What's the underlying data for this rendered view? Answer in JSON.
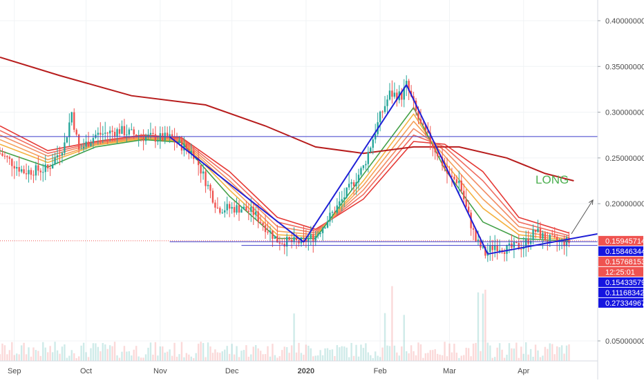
{
  "colors": {
    "bull": "#26a69a",
    "bear": "#ef5350",
    "ma_long": "#b71c1c",
    "trend": "#1f1fd6",
    "hline": "#3b3bc9",
    "long_text": "#4caf50",
    "label_blue": "#1515e0",
    "label_red": "#ef5350",
    "grid": "#f0f3f5",
    "axis_text": "#4a4a4a"
  },
  "chart_data": {
    "type": "candlestick",
    "title": "",
    "xlabel": "",
    "ylabel": "",
    "x_ticks": [
      {
        "date": "2019-09-01",
        "label": "Sep",
        "bold": false
      },
      {
        "date": "2019-10-01",
        "label": "Oct",
        "bold": false
      },
      {
        "date": "2019-11-01",
        "label": "Nov",
        "bold": false
      },
      {
        "date": "2019-12-01",
        "label": "Dec",
        "bold": false
      },
      {
        "date": "2020-01-01",
        "label": "2020",
        "bold": true
      },
      {
        "date": "2020-02-01",
        "label": "Feb",
        "bold": false
      },
      {
        "date": "2020-03-01",
        "label": "Mar",
        "bold": false
      },
      {
        "date": "2020-04-01",
        "label": "Apr",
        "bold": false
      }
    ],
    "y_ticks": [
      "0.40000000",
      "0.35000000",
      "0.30000000",
      "0.25000000",
      "0.20000000",
      "0.05000000"
    ],
    "ylim": [
      0.0,
      0.42
    ],
    "xlim": [
      "2019-08-26",
      "2020-05-02"
    ],
    "close_path": [
      [
        "2019-08-26",
        0.255
      ],
      [
        "2019-09-05",
        0.235
      ],
      [
        "2019-09-15",
        0.238
      ],
      [
        "2019-09-22",
        0.265
      ],
      [
        "2019-09-25",
        0.3
      ],
      [
        "2019-09-28",
        0.258
      ],
      [
        "2019-10-05",
        0.275
      ],
      [
        "2019-10-15",
        0.28
      ],
      [
        "2019-10-25",
        0.273
      ],
      [
        "2019-11-01",
        0.272
      ],
      [
        "2019-11-05",
        0.272
      ],
      [
        "2019-11-15",
        0.255
      ],
      [
        "2019-11-25",
        0.195
      ],
      [
        "2019-12-05",
        0.195
      ],
      [
        "2019-12-10",
        0.19
      ],
      [
        "2019-12-20",
        0.16
      ],
      [
        "2019-12-25",
        0.158
      ],
      [
        "2019-12-30",
        0.158
      ],
      [
        "2020-01-05",
        0.165
      ],
      [
        "2020-01-15",
        0.2
      ],
      [
        "2020-01-25",
        0.24
      ],
      [
        "2020-02-01",
        0.295
      ],
      [
        "2020-02-05",
        0.32
      ],
      [
        "2020-02-10",
        0.318
      ],
      [
        "2020-02-12",
        0.33
      ],
      [
        "2020-02-18",
        0.285
      ],
      [
        "2020-02-25",
        0.255
      ],
      [
        "2020-03-01",
        0.228
      ],
      [
        "2020-03-05",
        0.225
      ],
      [
        "2020-03-08",
        0.195
      ],
      [
        "2020-03-12",
        0.16
      ],
      [
        "2020-03-16",
        0.145
      ],
      [
        "2020-03-20",
        0.155
      ],
      [
        "2020-03-25",
        0.15
      ],
      [
        "2020-04-01",
        0.155
      ],
      [
        "2020-04-06",
        0.17
      ],
      [
        "2020-04-10",
        0.162
      ],
      [
        "2020-04-15",
        0.158
      ],
      [
        "2020-04-20",
        0.158
      ]
    ],
    "ribbon_series": [
      {
        "values": [
          [
            "2019-08-26",
            0.285
          ],
          [
            "2019-09-15",
            0.258
          ],
          [
            "2019-10-05",
            0.268
          ],
          [
            "2019-10-25",
            0.275
          ],
          [
            "2019-11-10",
            0.272
          ],
          [
            "2019-11-30",
            0.235
          ],
          [
            "2019-12-20",
            0.185
          ],
          [
            "2020-01-05",
            0.172
          ],
          [
            "2020-01-25",
            0.205
          ],
          [
            "2020-02-15",
            0.268
          ],
          [
            "2020-02-28",
            0.265
          ],
          [
            "2020-03-15",
            0.235
          ],
          [
            "2020-03-30",
            0.185
          ],
          [
            "2020-04-20",
            0.168
          ]
        ],
        "color": "#e53935"
      },
      {
        "values": [
          [
            "2019-08-26",
            0.28
          ],
          [
            "2019-09-15",
            0.255
          ],
          [
            "2019-10-05",
            0.267
          ],
          [
            "2019-10-25",
            0.274
          ],
          [
            "2019-11-10",
            0.271
          ],
          [
            "2019-11-30",
            0.23
          ],
          [
            "2019-12-20",
            0.18
          ],
          [
            "2020-01-05",
            0.17
          ],
          [
            "2020-01-25",
            0.21
          ],
          [
            "2020-02-15",
            0.275
          ],
          [
            "2020-02-28",
            0.262
          ],
          [
            "2020-03-15",
            0.225
          ],
          [
            "2020-03-30",
            0.18
          ],
          [
            "2020-04-20",
            0.165
          ]
        ],
        "color": "#ef6c5f"
      },
      {
        "values": [
          [
            "2019-08-26",
            0.275
          ],
          [
            "2019-09-15",
            0.252
          ],
          [
            "2019-10-05",
            0.266
          ],
          [
            "2019-10-25",
            0.273
          ],
          [
            "2019-11-10",
            0.27
          ],
          [
            "2019-11-30",
            0.225
          ],
          [
            "2019-12-20",
            0.175
          ],
          [
            "2020-01-05",
            0.168
          ],
          [
            "2020-01-25",
            0.215
          ],
          [
            "2020-02-15",
            0.282
          ],
          [
            "2020-02-28",
            0.258
          ],
          [
            "2020-03-15",
            0.215
          ],
          [
            "2020-03-30",
            0.175
          ],
          [
            "2020-04-20",
            0.163
          ]
        ],
        "color": "#f28b62"
      },
      {
        "values": [
          [
            "2019-08-26",
            0.27
          ],
          [
            "2019-09-15",
            0.248
          ],
          [
            "2019-10-05",
            0.265
          ],
          [
            "2019-10-25",
            0.272
          ],
          [
            "2019-11-10",
            0.269
          ],
          [
            "2019-11-30",
            0.22
          ],
          [
            "2019-12-20",
            0.17
          ],
          [
            "2020-01-05",
            0.166
          ],
          [
            "2020-01-25",
            0.22
          ],
          [
            "2020-02-15",
            0.29
          ],
          [
            "2020-02-28",
            0.252
          ],
          [
            "2020-03-15",
            0.205
          ],
          [
            "2020-03-30",
            0.17
          ],
          [
            "2020-04-20",
            0.161
          ]
        ],
        "color": "#f5a05a"
      },
      {
        "values": [
          [
            "2019-08-26",
            0.265
          ],
          [
            "2019-09-15",
            0.245
          ],
          [
            "2019-10-05",
            0.264
          ],
          [
            "2019-10-25",
            0.271
          ],
          [
            "2019-11-10",
            0.268
          ],
          [
            "2019-11-30",
            0.215
          ],
          [
            "2019-12-20",
            0.166
          ],
          [
            "2020-01-05",
            0.164
          ],
          [
            "2020-01-25",
            0.225
          ],
          [
            "2020-02-15",
            0.298
          ],
          [
            "2020-02-28",
            0.245
          ],
          [
            "2020-03-15",
            0.195
          ],
          [
            "2020-03-30",
            0.166
          ],
          [
            "2020-04-20",
            0.16
          ]
        ],
        "color": "#f4b240"
      },
      {
        "values": [
          [
            "2019-08-26",
            0.258
          ],
          [
            "2019-09-15",
            0.24
          ],
          [
            "2019-10-05",
            0.262
          ],
          [
            "2019-10-25",
            0.27
          ],
          [
            "2019-11-10",
            0.267
          ],
          [
            "2019-11-30",
            0.208
          ],
          [
            "2019-12-20",
            0.162
          ],
          [
            "2020-01-05",
            0.162
          ],
          [
            "2020-01-25",
            0.232
          ],
          [
            "2020-02-15",
            0.305
          ],
          [
            "2020-02-28",
            0.238
          ],
          [
            "2020-03-15",
            0.18
          ],
          [
            "2020-03-30",
            0.162
          ],
          [
            "2020-04-20",
            0.159
          ]
        ],
        "color": "#43a047"
      }
    ],
    "ma_long_series": {
      "values": [
        [
          "2019-08-26",
          0.36
        ],
        [
          "2019-09-20",
          0.34
        ],
        [
          "2019-10-20",
          0.318
        ],
        [
          "2019-11-20",
          0.308
        ],
        [
          "2019-12-15",
          0.285
        ],
        [
          "2020-01-05",
          0.262
        ],
        [
          "2020-01-25",
          0.255
        ],
        [
          "2020-02-15",
          0.262
        ],
        [
          "2020-03-05",
          0.262
        ],
        [
          "2020-03-25",
          0.25
        ],
        [
          "2020-04-10",
          0.233
        ],
        [
          "2020-04-22",
          0.225
        ]
      ]
    },
    "trend_lines": [
      [
        [
          "2019-11-05",
          0.273
        ],
        [
          "2019-12-31",
          0.158
        ]
      ],
      [
        [
          "2019-12-31",
          0.158
        ],
        [
          "2020-02-12",
          0.33
        ]
      ],
      [
        [
          "2020-02-12",
          0.33
        ],
        [
          "2020-03-17",
          0.145
        ]
      ],
      [
        [
          "2020-03-17",
          0.145
        ],
        [
          "2020-05-02",
          0.167
        ]
      ]
    ],
    "horizontal_lines": [
      {
        "y": 0.27334967,
        "from": "2019-08-26"
      },
      {
        "y": 0.15846344,
        "from": "2019-11-05"
      },
      {
        "y": 0.15433579,
        "from": "2019-12-05"
      }
    ],
    "arrow": {
      "from": [
        "2020-04-21",
        0.167
      ],
      "to": [
        "2020-04-30",
        0.204
      ]
    },
    "annotation": {
      "text": "LONG",
      "at": [
        "2020-04-06",
        0.222
      ]
    },
    "price_labels": [
      {
        "value": 0.15945714,
        "text": "0.15945714",
        "style": "red"
      },
      {
        "value": 0.15846344,
        "text": "0.15846344",
        "style": "blue"
      },
      {
        "value": 0.15768153,
        "text": "0.15768153",
        "style": "red"
      },
      {
        "value": null,
        "text": "12:25:01",
        "style": "red"
      },
      {
        "value": 0.15433579,
        "text": "0.15433579",
        "style": "blue"
      },
      {
        "value": 0.11168342,
        "text": "0.11168342",
        "style": "blue"
      },
      {
        "value": 0.27334967,
        "text": "0.27334967",
        "style": "blue"
      }
    ]
  }
}
